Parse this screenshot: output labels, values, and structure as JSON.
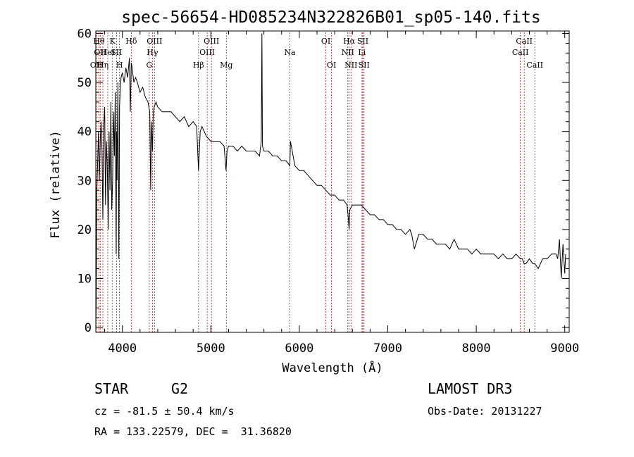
{
  "chart_data": {
    "type": "line",
    "title": "spec-56654-HD085234N322826B01_sp05-140.fits",
    "xlabel": "Wavelength (Å)",
    "ylabel": "Flux (relative)",
    "xlim": [
      3700,
      9050
    ],
    "ylim": [
      -1,
      60.5
    ],
    "xticks": [
      4000,
      5000,
      6000,
      7000,
      8000,
      9000
    ],
    "yticks": [
      0,
      10,
      20,
      30,
      40,
      50,
      60
    ],
    "grid": false,
    "series": [
      {
        "name": "flux",
        "x": [
          3700,
          3705,
          3712,
          3720,
          3730,
          3740,
          3750,
          3760,
          3770,
          3780,
          3790,
          3800,
          3810,
          3820,
          3830,
          3840,
          3850,
          3860,
          3870,
          3880,
          3890,
          3900,
          3910,
          3920,
          3930,
          3935,
          3940,
          3950,
          3960,
          3968,
          3975,
          3985,
          4000,
          4020,
          4040,
          4060,
          4080,
          4090,
          4101,
          4110,
          4130,
          4150,
          4170,
          4200,
          4230,
          4260,
          4290,
          4310,
          4320,
          4330,
          4340,
          4350,
          4360,
          4380,
          4400,
          4450,
          4500,
          4550,
          4600,
          4650,
          4700,
          4750,
          4800,
          4840,
          4861,
          4880,
          4900,
          4950,
          5000,
          5050,
          5100,
          5150,
          5172,
          5183,
          5200,
          5250,
          5300,
          5350,
          5400,
          5450,
          5500,
          5550,
          5570,
          5577,
          5584,
          5600,
          5650,
          5700,
          5750,
          5800,
          5850,
          5893,
          5900,
          5950,
          6000,
          6050,
          6100,
          6150,
          6200,
          6250,
          6300,
          6350,
          6400,
          6450,
          6500,
          6540,
          6555,
          6563,
          6570,
          6600,
          6650,
          6700,
          6750,
          6800,
          6850,
          6900,
          6950,
          7000,
          7050,
          7100,
          7150,
          7200,
          7250,
          7270,
          7300,
          7350,
          7400,
          7450,
          7500,
          7550,
          7600,
          7650,
          7700,
          7750,
          7800,
          7850,
          7900,
          7950,
          8000,
          8050,
          8100,
          8150,
          8200,
          8250,
          8300,
          8350,
          8400,
          8450,
          8498,
          8520,
          8542,
          8560,
          8600,
          8640,
          8662,
          8700,
          8750,
          8800,
          8850,
          8900,
          8920,
          8940,
          8960,
          8980,
          9000,
          9010
        ],
        "y": [
          0,
          5,
          28,
          33,
          40,
          30,
          38,
          42,
          36,
          22,
          41,
          45,
          25,
          38,
          33,
          20,
          40,
          28,
          46,
          24,
          30,
          44,
          35,
          48,
          15,
          40,
          30,
          50,
          14,
          45,
          48,
          51,
          52,
          50,
          53,
          51,
          55,
          44,
          54,
          53,
          50,
          51,
          50,
          48,
          49,
          47,
          46,
          44,
          28,
          42,
          36,
          44,
          45,
          46,
          45,
          44,
          44,
          44,
          43,
          42,
          43,
          41,
          42,
          41,
          32,
          40,
          41,
          39,
          38,
          38,
          38,
          37,
          32,
          36,
          37,
          37,
          36,
          37,
          36,
          36,
          36,
          35,
          38,
          60,
          37,
          36,
          36,
          35,
          35,
          34,
          34,
          33,
          38,
          33,
          32,
          32,
          31,
          30,
          29,
          29,
          28,
          27,
          27,
          26,
          26,
          25,
          22,
          20,
          24,
          25,
          25,
          25,
          24,
          23,
          23,
          22,
          22,
          21,
          21,
          20,
          20,
          19,
          20,
          19,
          16,
          19,
          19,
          18,
          18,
          17,
          17,
          17,
          16,
          18,
          16,
          16,
          16,
          15,
          16,
          15,
          15,
          15,
          15,
          14,
          15,
          14,
          14,
          15,
          14,
          14,
          13,
          13,
          14,
          13,
          13,
          12,
          14,
          14,
          15,
          15,
          14,
          18,
          10,
          17,
          11,
          15
        ]
      }
    ],
    "lines": [
      {
        "wl": 3705,
        "label": "OII",
        "row": 3
      },
      {
        "wl": 3736,
        "label": "Hθ",
        "row": 1
      },
      {
        "wl": 3750,
        "label": "OII",
        "row": 2
      },
      {
        "wl": 3780,
        "label": "Hη",
        "row": 3
      },
      {
        "wl": 3835,
        "label": "HeI",
        "row": 2
      },
      {
        "wl": 3889,
        "label": "K",
        "row": 1
      },
      {
        "wl": 3934,
        "label": "SII",
        "row": 2
      },
      {
        "wl": 3968,
        "label": "H",
        "row": 3
      },
      {
        "wl": 4101,
        "label": "Hδ",
        "row": 1
      },
      {
        "wl": 4304,
        "label": "G",
        "row": 3
      },
      {
        "wl": 4340,
        "label": "Hγ",
        "row": 2
      },
      {
        "wl": 4363,
        "label": "OIII",
        "row": 1
      },
      {
        "wl": 4861,
        "label": "Hβ",
        "row": 3
      },
      {
        "wl": 4959,
        "label": "OIII",
        "row": 2
      },
      {
        "wl": 5007,
        "label": "OIII",
        "row": 1
      },
      {
        "wl": 5175,
        "label": "Mg",
        "row": 3
      },
      {
        "wl": 5893,
        "label": "Na",
        "row": 2
      },
      {
        "wl": 6300,
        "label": "OI",
        "row": 1
      },
      {
        "wl": 6364,
        "label": "OI",
        "row": 3
      },
      {
        "wl": 6548,
        "label": "NII",
        "row": 2
      },
      {
        "wl": 6563,
        "label": "Hα",
        "row": 1
      },
      {
        "wl": 6584,
        "label": "NII",
        "row": 3
      },
      {
        "wl": 6708,
        "label": "Li",
        "row": 2
      },
      {
        "wl": 6717,
        "label": "SII",
        "row": 1
      },
      {
        "wl": 6731,
        "label": "SII",
        "row": 3
      },
      {
        "wl": 8498,
        "label": "CaII",
        "row": 2
      },
      {
        "wl": 8542,
        "label": "CaII",
        "row": 1
      },
      {
        "wl": 8662,
        "label": "CaII",
        "row": 3
      }
    ]
  },
  "info": {
    "class": "STAR",
    "subclass": "G2",
    "survey": "LAMOST DR3",
    "cz": "cz = -81.5 ± 50.4 km/s",
    "obsdate": "Obs-Date: 20131227",
    "radec": "RA = 133.22579, DEC =  31.36820"
  },
  "colors": {
    "line_marker": "#b22222",
    "spectrum": "#000000"
  }
}
